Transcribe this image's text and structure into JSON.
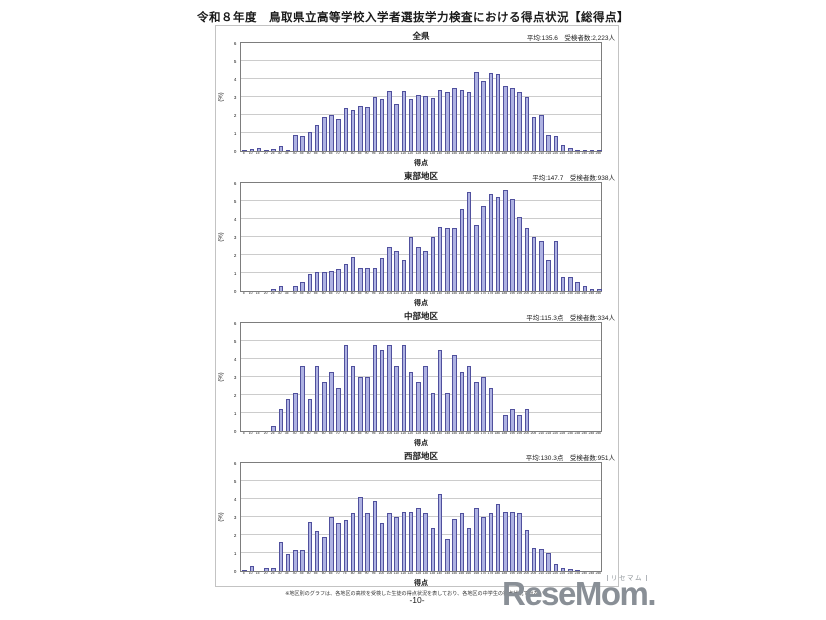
{
  "page": {
    "title": "令和８年度　鳥取県立高等学校入学者選抜学力検査における得点状況【総得点】",
    "footnote": "※地区別のグラフは、各地区の高校を受検した生徒の得点状況を表しており、各地区の中学生の得点状況ではない。",
    "page_number": "-10-",
    "logo_text": "ReseMom.",
    "logo_ruby": "リセマム"
  },
  "colors": {
    "bar_fill": "#aeb2e2",
    "bar_border": "#50509d",
    "gridline": "#cccccc",
    "plot_border": "#7d7d7d",
    "frame_border": "#c3c3c3",
    "logo_gray": "#898f96"
  },
  "chart_data": [
    {
      "type": "bar",
      "title": "全県",
      "stats": "平均:135.6　受検者数:2,223人",
      "xlabel": "得点",
      "ylabel": "(%)",
      "ylim": [
        0,
        6
      ],
      "yticks": [
        0,
        1,
        2,
        3,
        4,
        5,
        6
      ],
      "grid": true,
      "categories": [
        5,
        10,
        15,
        20,
        25,
        30,
        35,
        40,
        45,
        50,
        55,
        60,
        65,
        70,
        75,
        80,
        85,
        90,
        95,
        100,
        105,
        110,
        115,
        120,
        125,
        130,
        135,
        140,
        145,
        150,
        155,
        160,
        165,
        170,
        175,
        180,
        185,
        190,
        195,
        200,
        205,
        210,
        215,
        220,
        225,
        230,
        235,
        240,
        245,
        250
      ],
      "values": [
        0.05,
        0.1,
        0.15,
        0.05,
        0.1,
        0.3,
        0.05,
        0.9,
        0.85,
        1.05,
        1.45,
        1.9,
        2.0,
        1.8,
        2.4,
        2.3,
        2.5,
        2.45,
        3.0,
        2.9,
        3.35,
        2.6,
        3.35,
        2.9,
        3.1,
        3.05,
        2.95,
        3.4,
        3.3,
        3.5,
        3.4,
        3.3,
        4.4,
        3.9,
        4.35,
        4.3,
        3.6,
        3.5,
        3.3,
        3.0,
        1.9,
        2.0,
        0.9,
        0.85,
        0.35,
        0.15,
        0.05,
        0.05,
        0.02,
        0.02
      ]
    },
    {
      "type": "bar",
      "title": "東部地区",
      "stats": "平均:147.7　受検者数:938人",
      "xlabel": "得点",
      "ylabel": "(%)",
      "ylim": [
        0,
        6
      ],
      "yticks": [
        0,
        1,
        2,
        3,
        4,
        5,
        6
      ],
      "grid": true,
      "categories": [
        5,
        10,
        15,
        20,
        25,
        30,
        35,
        40,
        45,
        50,
        55,
        60,
        65,
        70,
        75,
        80,
        85,
        90,
        95,
        100,
        105,
        110,
        115,
        120,
        125,
        130,
        135,
        140,
        145,
        150,
        155,
        160,
        165,
        170,
        175,
        180,
        185,
        190,
        195,
        200,
        205,
        210,
        215,
        220,
        225,
        230,
        235,
        240,
        245,
        250
      ],
      "values": [
        0,
        0,
        0,
        0,
        0.1,
        0.3,
        0,
        0.3,
        0.5,
        0.95,
        1.05,
        1.05,
        1.1,
        1.25,
        1.5,
        1.9,
        1.3,
        1.3,
        1.3,
        1.85,
        2.45,
        2.2,
        1.7,
        3.0,
        2.45,
        2.2,
        3.0,
        3.55,
        3.5,
        3.5,
        4.55,
        5.5,
        3.65,
        4.75,
        5.4,
        5.2,
        5.6,
        5.1,
        4.1,
        3.5,
        3.0,
        2.8,
        1.7,
        2.8,
        0.8,
        0.8,
        0.5,
        0.3,
        0.1,
        0.1
      ]
    },
    {
      "type": "bar",
      "title": "中部地区",
      "stats": "平均:115.3点　受検者数:334人",
      "xlabel": "得点",
      "ylabel": "(%)",
      "ylim": [
        0,
        6
      ],
      "yticks": [
        0,
        1,
        2,
        3,
        4,
        5,
        6
      ],
      "grid": true,
      "categories": [
        5,
        10,
        15,
        20,
        25,
        30,
        35,
        40,
        45,
        50,
        55,
        60,
        65,
        70,
        75,
        80,
        85,
        90,
        95,
        100,
        105,
        110,
        115,
        120,
        125,
        130,
        135,
        140,
        145,
        150,
        155,
        160,
        165,
        170,
        175,
        180,
        185,
        190,
        195,
        200,
        205,
        210,
        215,
        220,
        225,
        230,
        235,
        240,
        245,
        250
      ],
      "values": [
        0,
        0,
        0,
        0,
        0.3,
        1.2,
        1.8,
        2.1,
        3.6,
        1.8,
        3.6,
        2.7,
        3.3,
        2.4,
        4.8,
        3.6,
        3.0,
        3.0,
        4.8,
        4.5,
        4.8,
        3.6,
        4.8,
        3.3,
        2.7,
        3.6,
        2.1,
        4.5,
        2.1,
        4.2,
        3.3,
        3.6,
        2.7,
        3.0,
        2.4,
        0,
        0.9,
        1.2,
        0.9,
        1.2,
        0,
        0,
        0,
        0,
        0,
        0,
        0,
        0,
        0,
        0
      ]
    },
    {
      "type": "bar",
      "title": "西部地区",
      "stats": "平均:130.3点　受検者数:951人",
      "xlabel": "得点",
      "ylabel": "(%)",
      "ylim": [
        0,
        6
      ],
      "yticks": [
        0,
        1,
        2,
        3,
        4,
        5,
        6
      ],
      "grid": true,
      "categories": [
        5,
        10,
        15,
        20,
        25,
        30,
        35,
        40,
        45,
        50,
        55,
        60,
        65,
        70,
        75,
        80,
        85,
        90,
        95,
        100,
        105,
        110,
        115,
        120,
        125,
        130,
        135,
        140,
        145,
        150,
        155,
        160,
        165,
        170,
        175,
        180,
        185,
        190,
        195,
        200,
        205,
        210,
        215,
        220,
        225,
        230,
        235,
        240,
        245,
        250
      ],
      "values": [
        0.05,
        0.3,
        0,
        0.15,
        0.15,
        1.6,
        0.95,
        1.15,
        1.15,
        2.75,
        2.2,
        1.9,
        3.0,
        2.65,
        2.85,
        3.2,
        4.1,
        3.2,
        3.9,
        2.65,
        3.2,
        3.0,
        3.3,
        3.3,
        3.5,
        3.2,
        2.4,
        4.3,
        1.8,
        2.9,
        3.2,
        2.4,
        3.5,
        3.0,
        3.2,
        3.7,
        3.3,
        3.3,
        3.2,
        2.3,
        1.3,
        1.2,
        1.0,
        0.4,
        0.15,
        0.1,
        0.05,
        0,
        0,
        0
      ]
    }
  ]
}
